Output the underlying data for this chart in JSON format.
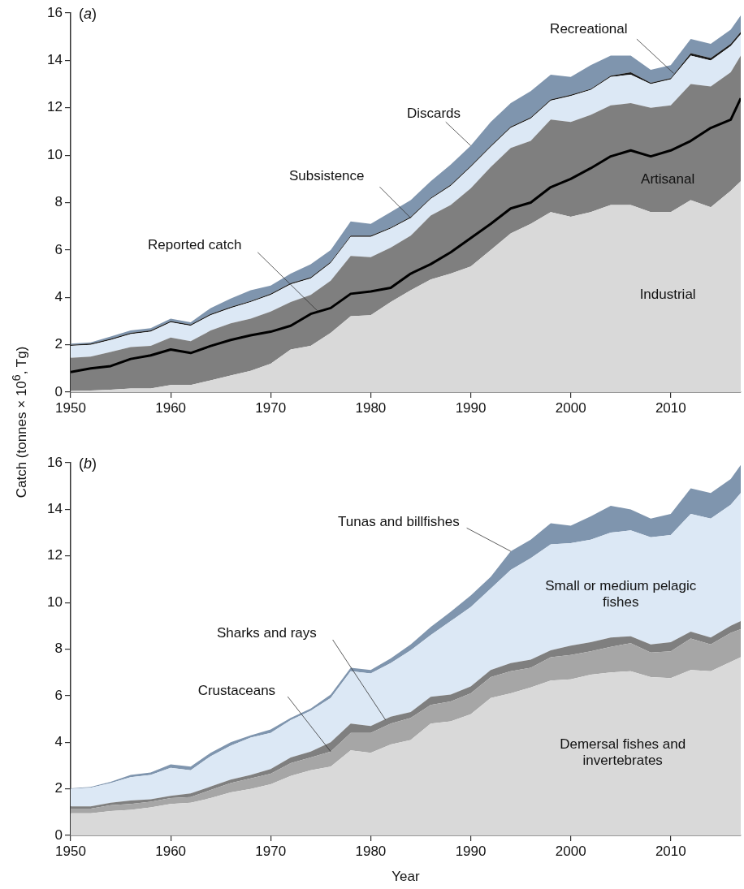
{
  "chart_data": [
    {
      "type": "area",
      "title": "(a)",
      "ylabel": "Catch (tonnes × 10$^{6}$, Tg)",
      "stacked": true,
      "annotations": [
        {
          "text": "Subsistence",
          "x": 1984,
          "y": 7.35
        },
        {
          "text": "Recreational",
          "x": 2010.3,
          "y": 13.45
        },
        {
          "text": "Discards",
          "x": 1990,
          "y": 10.4
        },
        {
          "text": "Reported catch",
          "x": 1974.7,
          "y": 3.42
        }
      ],
      "x": [
        1950,
        1952,
        1954,
        1956,
        1958,
        1960,
        1962,
        1964,
        1966,
        1968,
        1970,
        1972,
        1974,
        1976,
        1978,
        1980,
        1982,
        1984,
        1986,
        1988,
        1990,
        1992,
        1994,
        1996,
        1998,
        2000,
        2002,
        2004,
        2006,
        2008,
        2010,
        2012,
        2014,
        2016,
        2017
      ],
      "xlim": [
        1950,
        2017
      ],
      "xticks": [
        1950,
        1960,
        1970,
        1980,
        1990,
        2000,
        2010
      ],
      "ylim": [
        0,
        16
      ],
      "yticks": [
        0,
        2,
        4,
        6,
        8,
        10,
        12,
        14,
        16
      ],
      "series": [
        {
          "name": "Industrial",
          "color": "#d9d9d9",
          "values": [
            0.05,
            0.07,
            0.1,
            0.15,
            0.15,
            0.3,
            0.3,
            0.5,
            0.7,
            0.9,
            1.2,
            1.8,
            1.95,
            2.5,
            3.2,
            3.25,
            3.8,
            4.3,
            4.75,
            5.0,
            5.3,
            6.0,
            6.7,
            7.1,
            7.6,
            7.4,
            7.6,
            7.9,
            7.9,
            7.6,
            7.6,
            8.1,
            7.8,
            8.5,
            8.9
          ]
        },
        {
          "name": "Artisanal",
          "color": "#7f7f7f",
          "values": [
            1.4,
            1.43,
            1.6,
            1.75,
            1.8,
            2.0,
            1.85,
            2.1,
            2.2,
            2.2,
            2.2,
            2.0,
            2.15,
            2.2,
            2.55,
            2.45,
            2.3,
            2.3,
            2.7,
            2.9,
            3.3,
            3.5,
            3.6,
            3.5,
            3.9,
            4.0,
            4.1,
            4.2,
            4.3,
            4.4,
            4.5,
            4.9,
            5.1,
            5.0,
            5.3
          ]
        },
        {
          "color": "#dce8f5",
          "values": [
            0.5,
            0.5,
            0.5,
            0.55,
            0.6,
            0.65,
            0.65,
            0.65,
            0.65,
            0.7,
            0.7,
            0.75,
            0.7,
            0.75,
            0.8,
            0.85,
            0.8,
            0.75,
            0.7,
            0.8,
            0.9,
            0.85,
            0.85,
            0.95,
            0.8,
            1.1,
            1.05,
            1.2,
            1.2,
            1.0,
            1.1,
            1.2,
            1.1,
            1.1,
            0.9
          ]
        },
        {
          "color": "#1a1a1a",
          "values": [
            0.05,
            0.05,
            0.05,
            0.05,
            0.05,
            0.05,
            0.05,
            0.05,
            0.05,
            0.05,
            0.05,
            0.05,
            0.05,
            0.05,
            0.05,
            0.05,
            0.05,
            0.05,
            0.05,
            0.05,
            0.05,
            0.05,
            0.05,
            0.05,
            0.05,
            0.05,
            0.05,
            0.05,
            0.1,
            0.05,
            0.05,
            0.1,
            0.1,
            0.1,
            0.1
          ]
        },
        {
          "color": "#7f95ae",
          "values": [
            0.05,
            0.05,
            0.1,
            0.1,
            0.1,
            0.1,
            0.1,
            0.25,
            0.35,
            0.45,
            0.35,
            0.4,
            0.55,
            0.5,
            0.6,
            0.5,
            0.65,
            0.7,
            0.7,
            0.85,
            0.85,
            1.0,
            1.0,
            1.1,
            1.05,
            0.75,
            1.0,
            0.85,
            0.7,
            0.55,
            0.55,
            0.6,
            0.6,
            0.6,
            0.7
          ]
        },
        {
          "type": "line",
          "color": "#000000",
          "values": [
            0.85,
            1.0,
            1.1,
            1.4,
            1.55,
            1.8,
            1.65,
            1.95,
            2.2,
            2.4,
            2.55,
            2.8,
            3.3,
            3.55,
            4.15,
            4.25,
            4.4,
            5.0,
            5.4,
            5.9,
            6.5,
            7.1,
            7.75,
            8.0,
            8.65,
            9.0,
            9.45,
            9.95,
            10.2,
            9.95,
            10.2,
            10.6,
            11.15,
            11.5,
            12.4
          ]
        }
      ]
    },
    {
      "type": "area",
      "title": "(b)",
      "xlabel": "Year",
      "stacked": true,
      "annotations": [
        {
          "text": "Crustaceans",
          "x": 1976,
          "y": 3.6
        },
        {
          "text": "Sharks and rays",
          "x": 1981.5,
          "y": 4.95
        },
        {
          "text": "Tunas and billfishes",
          "x": 1994,
          "y": 12.2
        }
      ],
      "x": [
        1950,
        1952,
        1954,
        1956,
        1958,
        1960,
        1962,
        1964,
        1966,
        1968,
        1970,
        1972,
        1974,
        1976,
        1978,
        1980,
        1982,
        1984,
        1986,
        1988,
        1990,
        1992,
        1994,
        1996,
        1998,
        2000,
        2002,
        2004,
        2006,
        2008,
        2010,
        2012,
        2014,
        2016,
        2017
      ],
      "xlim": [
        1950,
        2017
      ],
      "xticks": [
        1950,
        1960,
        1970,
        1980,
        1990,
        2000,
        2010
      ],
      "ylim": [
        0,
        16
      ],
      "yticks": [
        0,
        2,
        4,
        6,
        8,
        10,
        12,
        14,
        16
      ],
      "series": [
        {
          "name": "Demersal fishes and invertebrates",
          "color": "#d9d9d9",
          "values": [
            0.95,
            0.95,
            1.05,
            1.1,
            1.2,
            1.35,
            1.4,
            1.6,
            1.85,
            2.0,
            2.2,
            2.55,
            2.8,
            2.95,
            3.65,
            3.55,
            3.9,
            4.1,
            4.8,
            4.9,
            5.2,
            5.9,
            6.1,
            6.35,
            6.65,
            6.7,
            6.9,
            7.0,
            7.05,
            6.8,
            6.75,
            7.1,
            7.05,
            7.45,
            7.65
          ]
        },
        {
          "color": "#a6a6a6",
          "values": [
            0.2,
            0.2,
            0.25,
            0.25,
            0.25,
            0.25,
            0.25,
            0.35,
            0.4,
            0.45,
            0.45,
            0.55,
            0.55,
            0.65,
            0.75,
            0.85,
            0.9,
            0.95,
            0.8,
            0.85,
            0.9,
            0.9,
            0.95,
            0.85,
            1.0,
            1.05,
            1.0,
            1.1,
            1.2,
            1.05,
            1.15,
            1.35,
            1.15,
            1.25,
            1.2
          ]
        },
        {
          "color": "#7f7f7f",
          "values": [
            0.1,
            0.1,
            0.1,
            0.15,
            0.1,
            0.1,
            0.15,
            0.15,
            0.15,
            0.15,
            0.2,
            0.25,
            0.25,
            0.4,
            0.4,
            0.3,
            0.3,
            0.25,
            0.35,
            0.3,
            0.3,
            0.3,
            0.35,
            0.35,
            0.3,
            0.4,
            0.4,
            0.4,
            0.3,
            0.35,
            0.4,
            0.3,
            0.3,
            0.3,
            0.35
          ]
        },
        {
          "name": "Small or medium pelagic fishes",
          "color": "#dce8f5",
          "values": [
            0.75,
            0.8,
            0.85,
            1.0,
            1.05,
            1.2,
            1.0,
            1.3,
            1.45,
            1.6,
            1.55,
            1.6,
            1.75,
            1.9,
            2.25,
            2.25,
            2.3,
            2.65,
            2.65,
            3.15,
            3.4,
            3.5,
            4.0,
            4.35,
            4.55,
            4.4,
            4.4,
            4.5,
            4.55,
            4.6,
            4.6,
            5.05,
            5.1,
            5.2,
            5.5
          ]
        },
        {
          "color": "#7f95ae",
          "values": [
            0.02,
            0.03,
            0.05,
            0.1,
            0.1,
            0.15,
            0.15,
            0.15,
            0.15,
            0.1,
            0.15,
            0.1,
            0.1,
            0.15,
            0.15,
            0.15,
            0.2,
            0.25,
            0.35,
            0.4,
            0.5,
            0.5,
            0.8,
            0.8,
            0.9,
            0.75,
            1.0,
            1.15,
            0.9,
            0.8,
            0.9,
            1.1,
            1.1,
            1.1,
            1.2
          ]
        }
      ]
    }
  ]
}
